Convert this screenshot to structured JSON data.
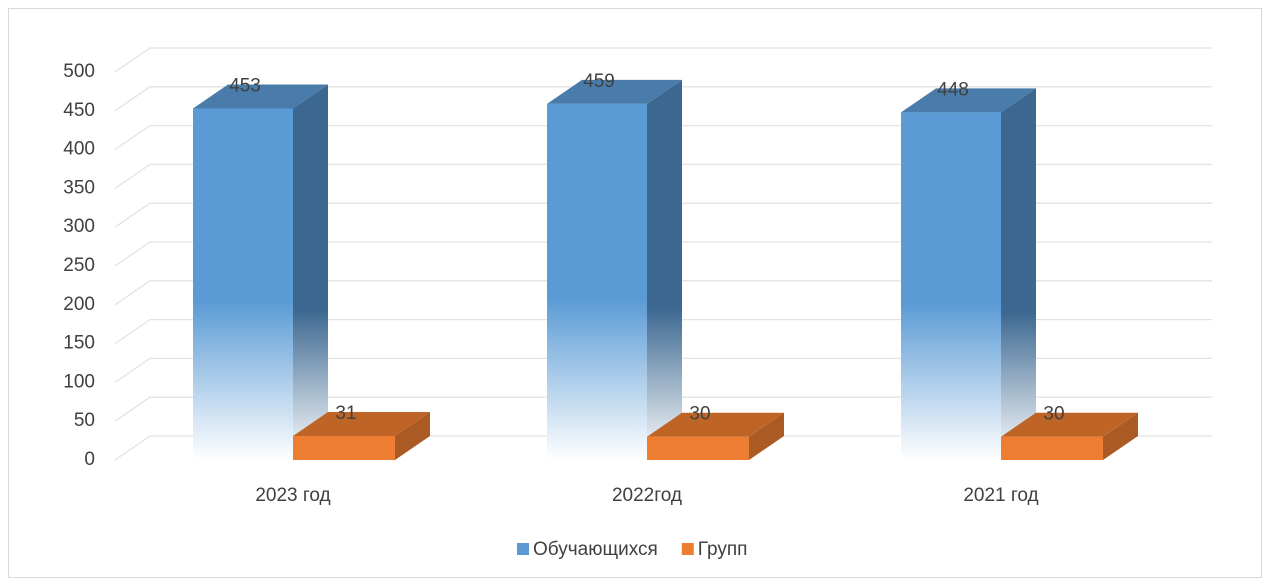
{
  "chart_data": {
    "type": "bar3d",
    "categories": [
      "2023 год",
      "2022год",
      "2021 год"
    ],
    "series": [
      {
        "name": "Обучающихся",
        "color": "#5b9bd5",
        "values": [
          453,
          459,
          448
        ]
      },
      {
        "name": "Групп",
        "color": "#ed7d31",
        "values": [
          31,
          30,
          30
        ]
      }
    ],
    "ylim": [
      0,
      500
    ],
    "yticks": [
      0,
      50,
      100,
      150,
      200,
      250,
      300,
      350,
      400,
      450,
      500
    ],
    "grid": true,
    "legend": "bottom"
  }
}
